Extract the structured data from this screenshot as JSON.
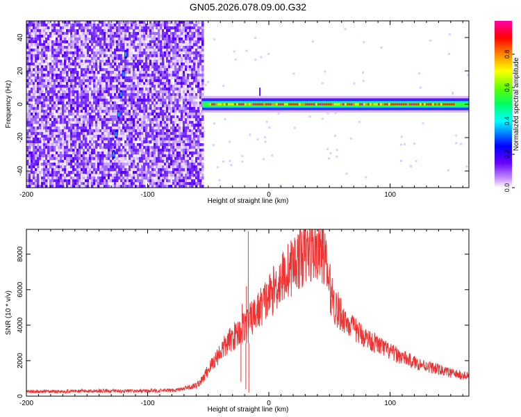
{
  "title": "GN05.2026.078.09.00.G32",
  "colors": {
    "snr_line": "#ee3333",
    "frame": "#000000"
  },
  "chart_data": [
    {
      "type": "heatmap",
      "xlabel": "Height of straight line (km)",
      "ylabel": "Frequency (Hz)",
      "xlim": [
        -200,
        165
      ],
      "ylim": [
        -50,
        50
      ],
      "x_ticks": [
        -200,
        -100,
        0,
        100
      ],
      "y_ticks": [
        -40,
        -20,
        0,
        20,
        40
      ],
      "grid": false,
      "colorbar": {
        "label": "Normalized spectral amplitude",
        "range": [
          0,
          1
        ],
        "ticks": [
          "0.0",
          "0.2",
          "0.4",
          "0.6",
          "0.8"
        ],
        "tick_values": [
          0,
          0.2,
          0.4,
          0.6,
          0.8
        ],
        "colormap": [
          "#ffffff",
          "#6600ff",
          "#0000ff",
          "#00ffff",
          "#00ff00",
          "#ffff00",
          "#ff8800",
          "#ff0000",
          "#ff00aa"
        ]
      },
      "regions": [
        {
          "name": "diffuse noise",
          "x": [
            -200,
            -55
          ],
          "y": [
            -50,
            50
          ],
          "amplitude": 0.1
        },
        {
          "name": "carrier",
          "x": [
            -55,
            165
          ],
          "y": [
            -2,
            2
          ],
          "amplitude": 0.9
        }
      ]
    },
    {
      "type": "line",
      "xlabel": "Height of straight line (km)",
      "ylabel": "SNR (10 * v/v)",
      "xlim": [
        -200,
        165
      ],
      "ylim": [
        0,
        9400
      ],
      "x_ticks": [
        -200,
        -100,
        0,
        100
      ],
      "y_ticks": [
        0,
        2000,
        4000,
        6000,
        8000
      ],
      "grid": false,
      "series": [
        {
          "x": [
            -200,
            -180,
            -160,
            -140,
            -120,
            -100,
            -80,
            -70,
            -60,
            -55,
            -50,
            -45,
            -40,
            -35,
            -30,
            -25,
            -20,
            -15,
            -10,
            -5,
            0,
            5,
            10,
            15,
            20,
            25,
            30,
            35,
            40,
            45,
            50,
            55,
            60,
            70,
            80,
            90,
            100,
            110,
            120,
            130,
            140,
            150,
            165
          ],
          "y": [
            250,
            260,
            280,
            300,
            280,
            300,
            320,
            400,
            600,
            900,
            1500,
            2000,
            2500,
            2900,
            3300,
            3600,
            4000,
            4300,
            4700,
            5200,
            5600,
            6100,
            6600,
            7000,
            7400,
            7800,
            8000,
            8200,
            8300,
            8200,
            6200,
            5000,
            4500,
            3800,
            3300,
            2900,
            2500,
            2200,
            1900,
            1700,
            1500,
            1300,
            1100
          ]
        }
      ]
    }
  ]
}
